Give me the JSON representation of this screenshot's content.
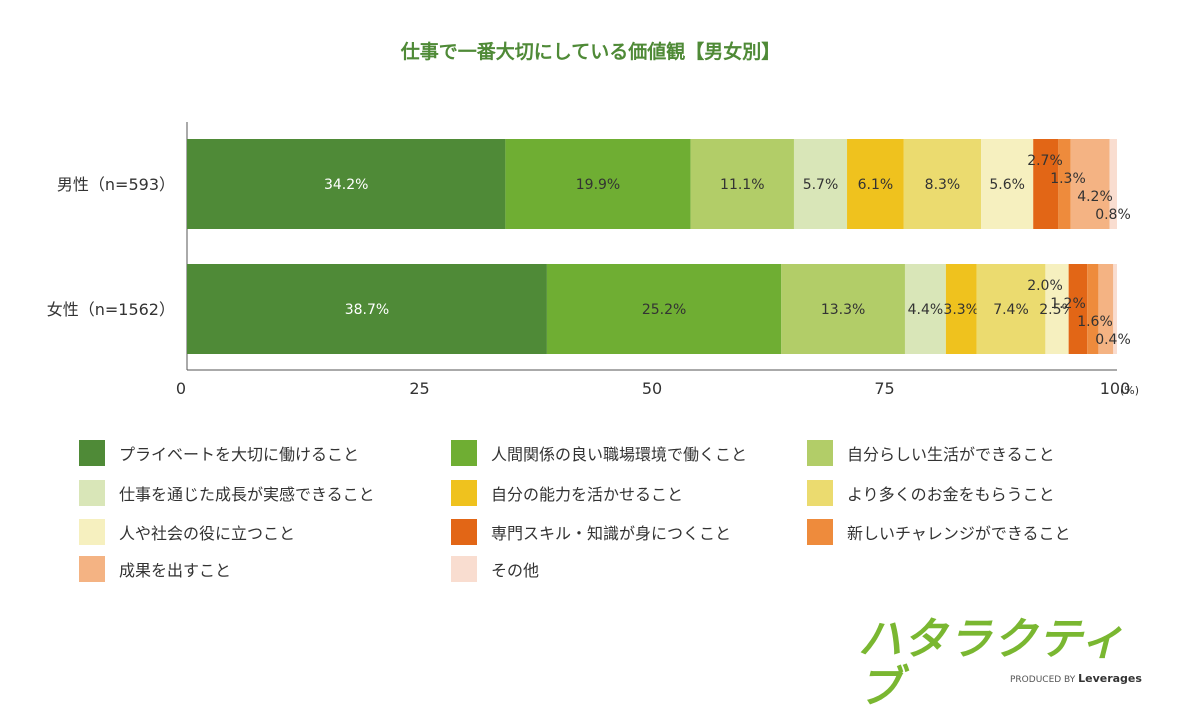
{
  "chart_data": {
    "type": "bar",
    "orientation": "horizontal",
    "stacked": true,
    "title": "仕事で一番大切にしている価値観【男女別】",
    "categories": [
      "男性（n=593）",
      "女性（n=1562）"
    ],
    "series": [
      {
        "name": "プライベートを大切に働けること",
        "color": "#4f8a37",
        "values": [
          34.2,
          38.7
        ],
        "labels": [
          "34.2%",
          "38.7%"
        ]
      },
      {
        "name": "人間関係の良い職場環境で働くこと",
        "color": "#6fae33",
        "values": [
          19.9,
          25.2
        ],
        "labels": [
          "19.9%",
          "25.2%"
        ]
      },
      {
        "name": "自分らしい生活ができること",
        "color": "#b2cd68",
        "values": [
          11.1,
          13.3
        ],
        "labels": [
          "11.1%",
          "13.3%"
        ]
      },
      {
        "name": "仕事を通じた成長が実感できること",
        "color": "#d9e6b8",
        "values": [
          5.7,
          4.4
        ],
        "labels": [
          "5.7%",
          "4.4%"
        ]
      },
      {
        "name": "自分の能力を活かせること",
        "color": "#efc21e",
        "values": [
          6.1,
          3.3
        ],
        "labels": [
          "6.1%",
          "3.3%"
        ]
      },
      {
        "name": "より多くのお金をもらうこと",
        "color": "#ebdb6f",
        "values": [
          8.3,
          7.4
        ],
        "labels": [
          "8.3%",
          "7.4%"
        ]
      },
      {
        "name": "人や社会の役に立つこと",
        "color": "#f6f0bf",
        "values": [
          5.6,
          2.5
        ],
        "labels": [
          "5.6%",
          "2.5%"
        ]
      },
      {
        "name": "専門スキル・知識が身につくこと",
        "color": "#e26616",
        "values": [
          2.7,
          2.0
        ],
        "labels": [
          "2.7%",
          "2.0%"
        ]
      },
      {
        "name": "新しいチャレンジができること",
        "color": "#ee8b3c",
        "values": [
          1.3,
          1.2
        ],
        "labels": [
          "1.3%",
          "1.2%"
        ]
      },
      {
        "name": "成果を出すこと",
        "color": "#f4b383",
        "values": [
          4.2,
          1.6
        ],
        "labels": [
          "4.2%",
          "1.6%"
        ]
      },
      {
        "name": "その他",
        "color": "#f9ddd0",
        "values": [
          0.8,
          0.4
        ],
        "labels": [
          "0.8%",
          "0.4%"
        ]
      }
    ],
    "xlim": [
      0,
      100
    ],
    "xticks": [
      "0",
      "25",
      "50",
      "75",
      "100"
    ],
    "xunit": "(%)",
    "xlabel": "",
    "ylabel": "",
    "legend_position": "bottom",
    "grid": false
  },
  "logo": {
    "name": "ハタラクティブ",
    "produced_by": "PRODUCED BY",
    "brand": "Leverages"
  }
}
